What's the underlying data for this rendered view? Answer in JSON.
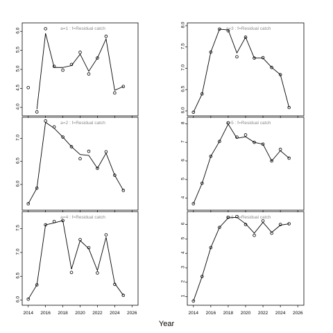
{
  "figure": {
    "xlabel": "Year",
    "colors": {
      "axis": "#000000",
      "line": "#000000",
      "points": "#000000",
      "title": "#8a8a8a"
    }
  },
  "chart_data": [
    {
      "type": "line",
      "title": "a=1  :  f=Residual catch",
      "x": [
        2014,
        2015,
        2016,
        2017,
        2018,
        2019,
        2020,
        2021,
        2022,
        2023,
        2024,
        2025
      ],
      "x_ticks": [
        2014,
        2016,
        2018,
        2020,
        2022,
        2024,
        2026
      ],
      "x_tick_labels_visible": false,
      "ylim": [
        3.85,
        6.15
      ],
      "y_ticks": [
        4.0,
        4.5,
        5.0,
        5.5,
        6.0
      ],
      "y_tick_labels": [
        "4.0",
        "4.5",
        "5.0",
        "5.5",
        "6.0"
      ],
      "series": [
        {
          "kind": "points",
          "values": [
            4.52,
            3.88,
            6.07,
            5.08,
            4.98,
            5.13,
            5.45,
            4.88,
            5.3,
            5.87,
            4.38,
            4.55
          ]
        },
        {
          "kind": "line",
          "values": [
            null,
            3.95,
            5.95,
            5.05,
            5.05,
            5.1,
            5.4,
            4.95,
            5.3,
            5.8,
            4.45,
            4.55
          ]
        }
      ]
    },
    {
      "type": "line",
      "title": "a=3  :  f=Residual catch",
      "x": [
        2014,
        2015,
        2016,
        2017,
        2018,
        2019,
        2020,
        2021,
        2022,
        2023,
        2024,
        2025
      ],
      "x_ticks": [
        2014,
        2016,
        2018,
        2020,
        2022,
        2024,
        2026
      ],
      "x_tick_labels_visible": false,
      "ylim": [
        5.95,
        8.0
      ],
      "y_ticks": [
        6.0,
        6.5,
        7.0,
        7.5,
        8.0
      ],
      "y_tick_labels": [
        "6.0",
        "6.5",
        "7.0",
        "7.5",
        "8.0"
      ],
      "series": [
        {
          "kind": "points",
          "values": [
            5.97,
            6.4,
            7.38,
            7.92,
            7.88,
            7.27,
            7.73,
            7.24,
            7.25,
            7.02,
            6.85,
            6.08
          ]
        },
        {
          "kind": "line",
          "values": [
            5.97,
            6.4,
            7.38,
            7.92,
            7.9,
            7.36,
            7.73,
            7.24,
            7.24,
            7.02,
            6.85,
            6.08
          ]
        }
      ]
    },
    {
      "type": "line",
      "title": "a=2  :  f=Residual catch",
      "x": [
        2014,
        2015,
        2016,
        2017,
        2018,
        2019,
        2020,
        2021,
        2022,
        2023,
        2024,
        2025
      ],
      "x_ticks": [
        2014,
        2016,
        2018,
        2020,
        2022,
        2024,
        2026
      ],
      "x_tick_labels_visible": false,
      "ylim": [
        5.5,
        7.4
      ],
      "y_ticks": [
        6.0,
        6.5,
        7.0
      ],
      "y_tick_labels": [
        "6.0",
        "6.5",
        "7.0"
      ],
      "series": [
        {
          "kind": "points",
          "values": [
            5.58,
            5.92,
            7.38,
            7.25,
            7.03,
            6.82,
            6.56,
            6.72,
            6.35,
            6.71,
            6.2,
            5.87
          ]
        },
        {
          "kind": "line",
          "values": [
            5.58,
            5.92,
            7.35,
            7.22,
            7.03,
            6.82,
            6.65,
            6.63,
            6.35,
            6.68,
            6.2,
            5.87
          ]
        }
      ]
    },
    {
      "type": "line",
      "title": "a=5  :  f=Residual catch",
      "x": [
        2014,
        2015,
        2016,
        2017,
        2018,
        2019,
        2020,
        2021,
        2022,
        2023,
        2024,
        2025
      ],
      "x_ticks": [
        2014,
        2016,
        2018,
        2020,
        2022,
        2024,
        2026
      ],
      "x_tick_labels_visible": false,
      "ylim": [
        3.5,
        8.2
      ],
      "y_ticks": [
        4,
        5,
        6,
        7,
        8
      ],
      "y_tick_labels": [
        "4",
        "5",
        "6",
        "7",
        "8"
      ],
      "series": [
        {
          "kind": "points",
          "values": [
            3.7,
            4.8,
            6.25,
            7.05,
            8.05,
            7.28,
            7.4,
            7.0,
            6.9,
            6.0,
            6.62,
            6.15
          ]
        },
        {
          "kind": "line",
          "values": [
            3.7,
            4.8,
            6.25,
            7.05,
            7.98,
            7.22,
            7.3,
            7.0,
            6.9,
            6.0,
            6.55,
            6.15
          ]
        }
      ]
    },
    {
      "type": "line",
      "title": "a=4  :  f=Residual catch",
      "x": [
        2014,
        2015,
        2016,
        2017,
        2018,
        2019,
        2020,
        2021,
        2022,
        2023,
        2024,
        2025
      ],
      "x_ticks": [
        2014,
        2016,
        2018,
        2020,
        2022,
        2024,
        2026
      ],
      "x_tick_labels_visible": true,
      "x_tick_labels": [
        "2014",
        "2016",
        "2018",
        "2020",
        "2022",
        "2024",
        "2026"
      ],
      "ylim": [
        5.95,
        7.8
      ],
      "y_ticks": [
        6.0,
        6.5,
        7.0,
        7.5
      ],
      "y_tick_labels": [
        "6.0",
        "6.5",
        "7.0",
        "7.5"
      ],
      "series": [
        {
          "kind": "points",
          "values": [
            6.02,
            6.32,
            7.58,
            7.65,
            7.67,
            6.58,
            7.27,
            7.1,
            6.57,
            7.37,
            6.33,
            6.1
          ]
        },
        {
          "kind": "line",
          "values": [
            6.02,
            6.32,
            7.58,
            7.62,
            7.67,
            6.65,
            7.25,
            7.08,
            6.62,
            7.32,
            6.35,
            6.1
          ]
        }
      ]
    },
    {
      "type": "line",
      "title": "a=6  :  f=Residual catch",
      "x": [
        2014,
        2015,
        2016,
        2017,
        2018,
        2019,
        2020,
        2021,
        2022,
        2023,
        2024,
        2025
      ],
      "x_ticks": [
        2014,
        2016,
        2018,
        2020,
        2022,
        2024,
        2026
      ],
      "x_tick_labels_visible": true,
      "x_tick_labels": [
        "2014",
        "2016",
        "2018",
        "2020",
        "2022",
        "2024",
        "2026"
      ],
      "ylim": [
        0.6,
        6.7
      ],
      "y_ticks": [
        1,
        2,
        3,
        4,
        5,
        6
      ],
      "y_tick_labels": [
        "1",
        "2",
        "3",
        "4",
        "5",
        "6"
      ],
      "series": [
        {
          "kind": "points",
          "values": [
            0.7,
            2.4,
            4.4,
            5.8,
            6.5,
            6.55,
            6.0,
            5.25,
            6.25,
            5.4,
            6.0,
            6.05
          ]
        },
        {
          "kind": "line",
          "values": [
            0.7,
            2.4,
            4.4,
            5.8,
            6.45,
            6.5,
            6.05,
            5.4,
            6.15,
            5.45,
            5.95,
            6.05
          ]
        }
      ]
    }
  ]
}
